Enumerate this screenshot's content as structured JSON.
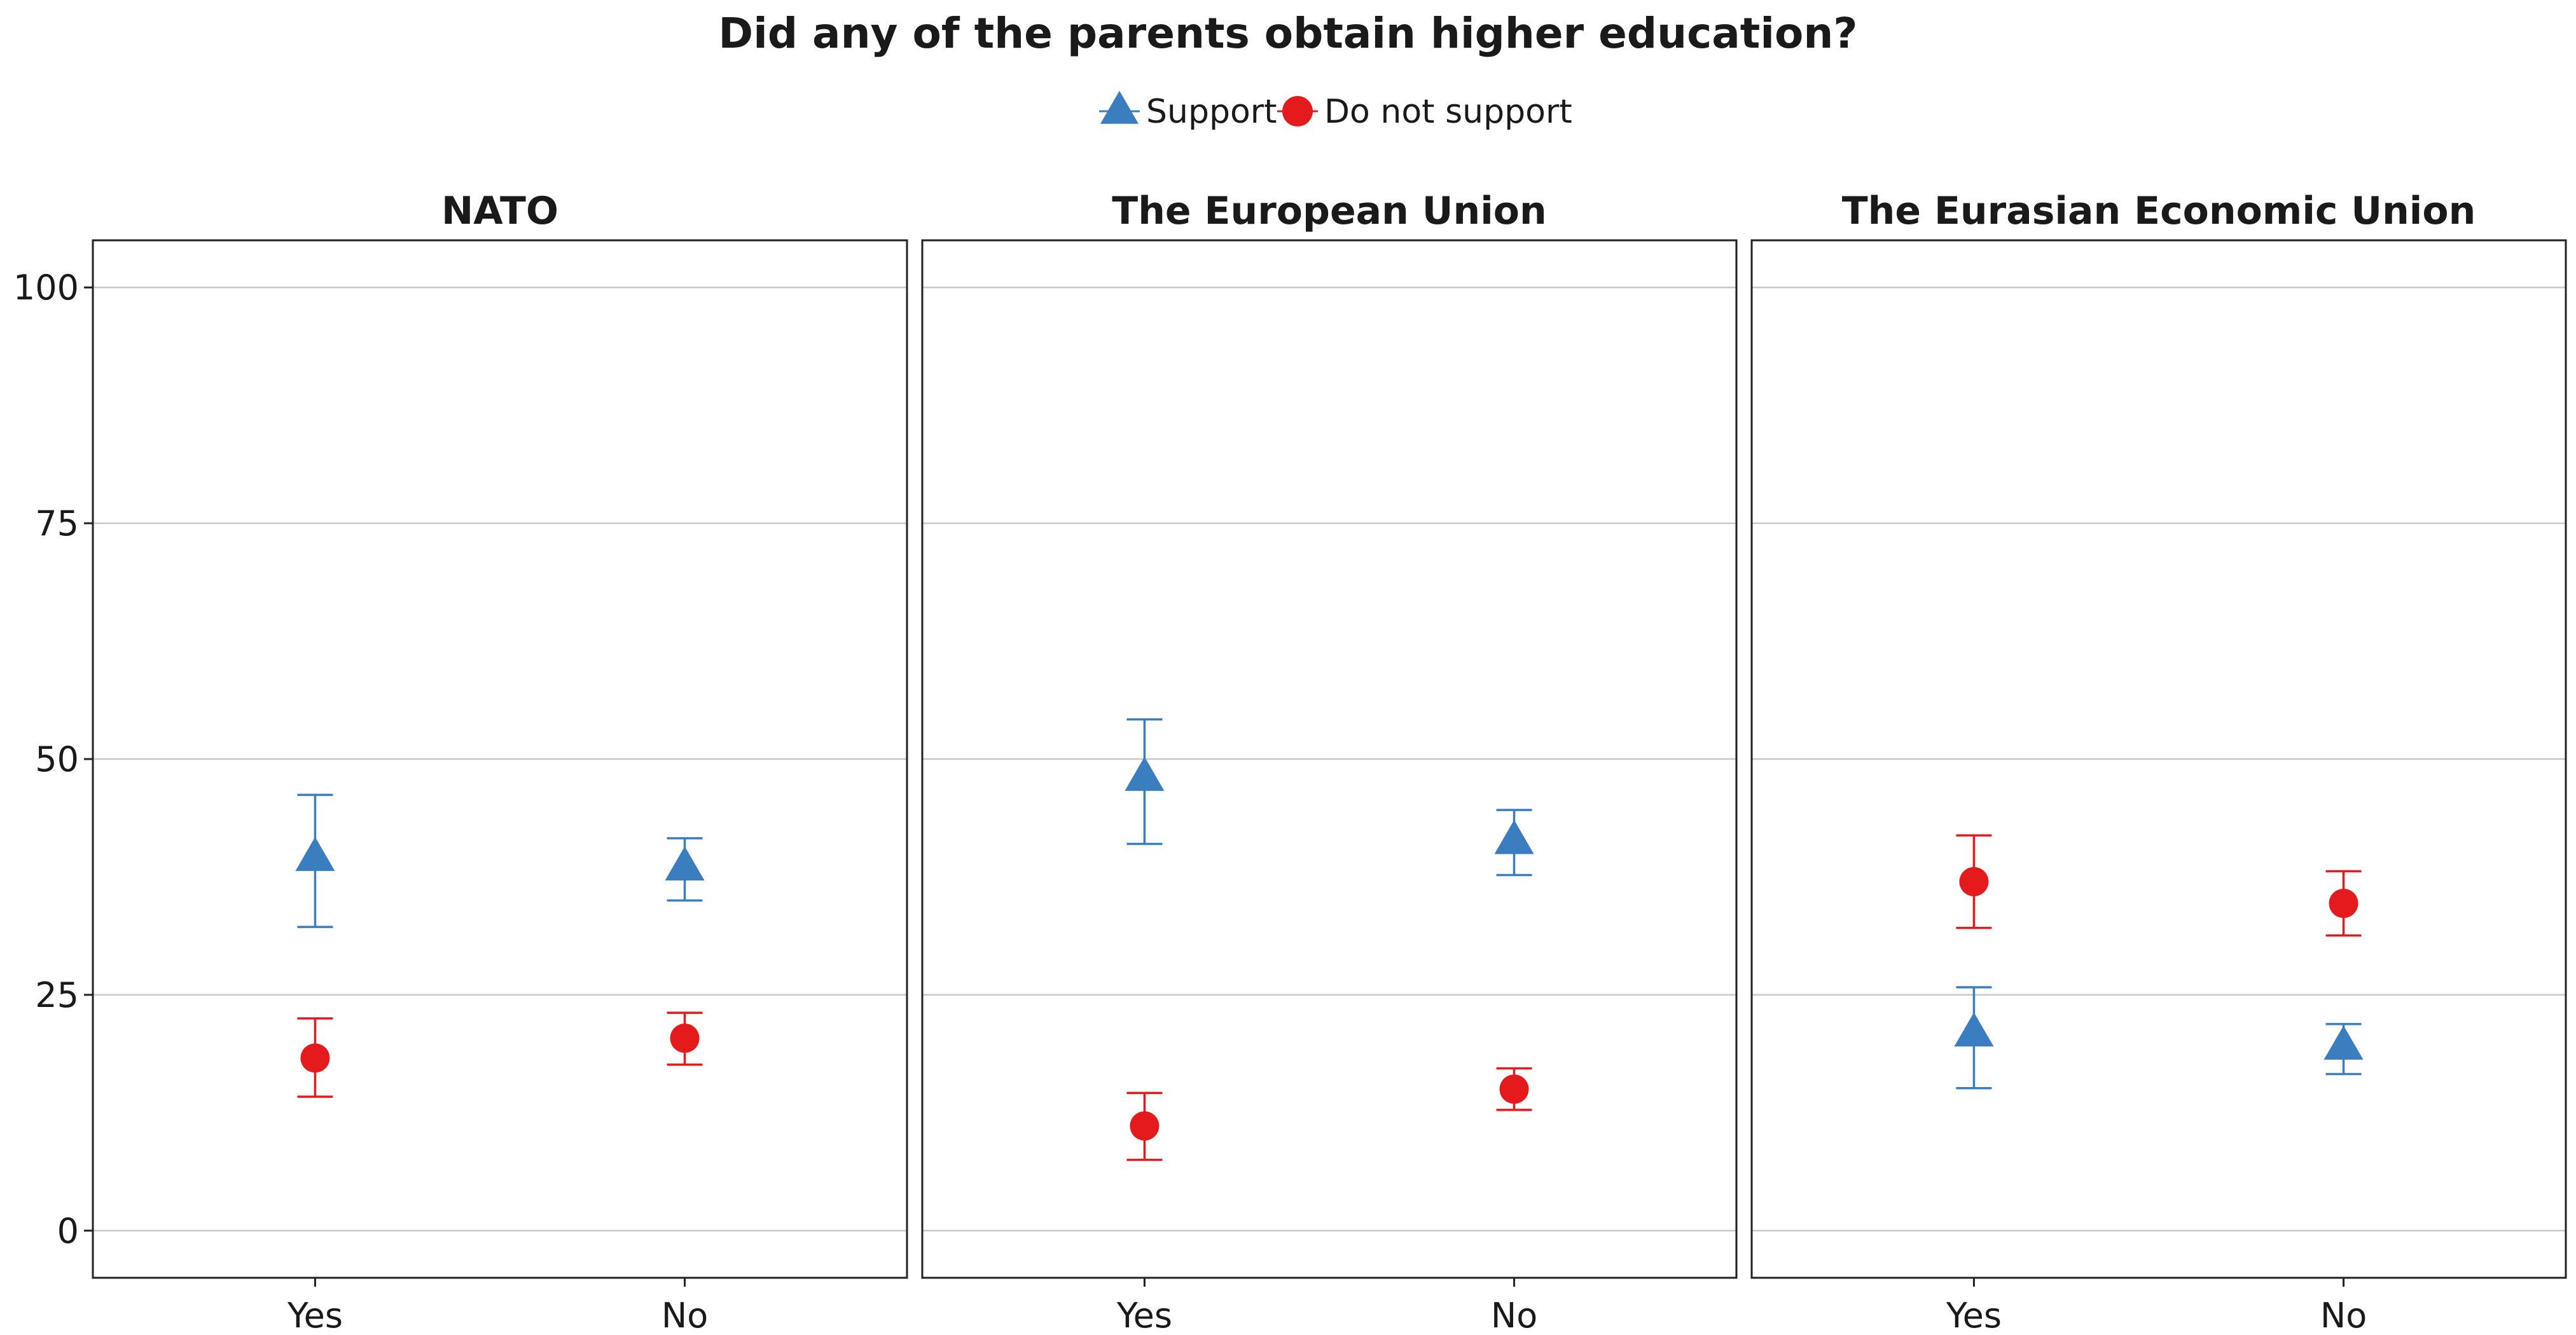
{
  "chart_data": {
    "type": "scatter",
    "title": "Did any of the parents obtain higher education?",
    "legend": {
      "placement": "top",
      "entries": [
        {
          "name": "Support",
          "color": "#3a7ebf",
          "shape": "triangle"
        },
        {
          "name": "Do not support",
          "color": "#e41a1c",
          "shape": "circle"
        }
      ]
    },
    "categories": [
      "Yes",
      "No"
    ],
    "ylim": [
      -5,
      105
    ],
    "yticks": [
      0,
      25,
      50,
      75,
      100
    ],
    "grid": "horizontal",
    "facets": [
      {
        "title": "NATO",
        "series": [
          {
            "name": "Support",
            "values": [
              39.5,
              38.5
            ],
            "lower": [
              32.2,
              35.0
            ],
            "upper": [
              46.2,
              41.6
            ]
          },
          {
            "name": "Do not support",
            "values": [
              18.3,
              20.4
            ],
            "lower": [
              14.2,
              17.6
            ],
            "upper": [
              22.5,
              23.1
            ]
          }
        ]
      },
      {
        "title": "The European Union",
        "series": [
          {
            "name": "Support",
            "values": [
              48.0,
              41.3
            ],
            "lower": [
              41.0,
              37.7
            ],
            "upper": [
              54.2,
              44.6
            ]
          },
          {
            "name": "Do not support",
            "values": [
              11.1,
              15.0
            ],
            "lower": [
              7.5,
              12.8
            ],
            "upper": [
              14.6,
              17.2
            ]
          }
        ]
      },
      {
        "title": "The Eurasian Economic Union",
        "series": [
          {
            "name": "Support",
            "values": [
              20.9,
              19.5
            ],
            "lower": [
              15.1,
              16.6
            ],
            "upper": [
              25.8,
              21.9
            ]
          },
          {
            "name": "Do not support",
            "values": [
              37.0,
              34.7
            ],
            "lower": [
              32.1,
              31.3
            ],
            "upper": [
              41.9,
              38.1
            ]
          }
        ]
      }
    ]
  }
}
